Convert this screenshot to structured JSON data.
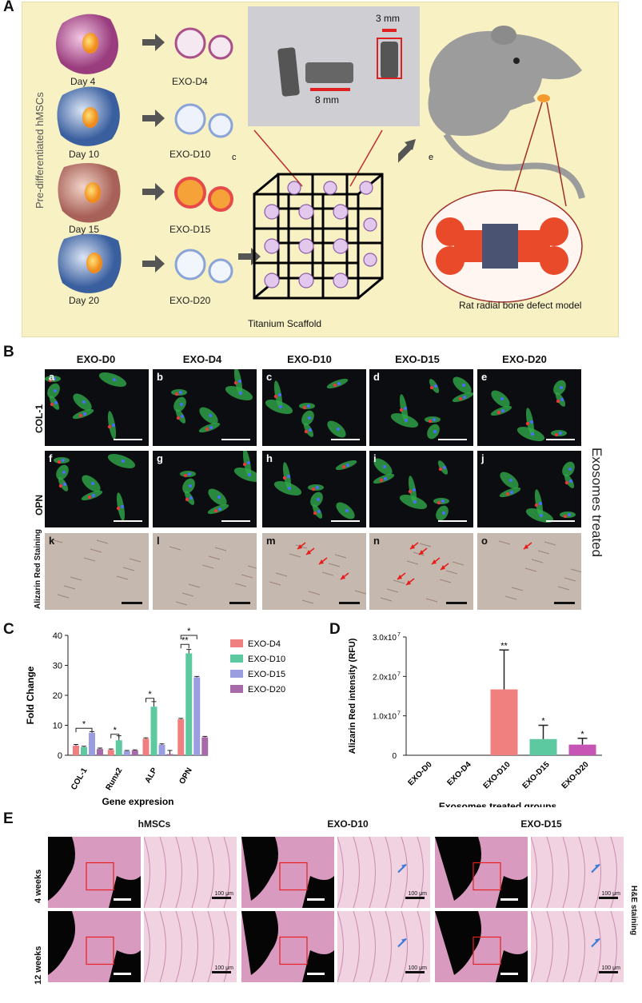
{
  "panel_labels": {
    "a": "A",
    "b": "B",
    "c": "C",
    "d": "D",
    "e": "E"
  },
  "panelA": {
    "side_label": "Pre-differentiated hMSCs",
    "days": [
      "Day 4",
      "Day 10",
      "Day 15",
      "Day 20"
    ],
    "exos": [
      "EXO-D4",
      "EXO-D10",
      "EXO-D15",
      "EXO-D20"
    ],
    "photo_dims": {
      "small": "3 mm",
      "large": "8 mm"
    },
    "scaffold_label": "Titanium Scaffold",
    "letter_c": "c",
    "letter_e": "e",
    "model_label": "Rat radial bone defect model",
    "colors": {
      "day4": "#a84a8c",
      "day10": "#3f68a8",
      "day15": "#b4706a",
      "day20": "#3a62a4",
      "bg": "#f7f1c4"
    }
  },
  "panelB": {
    "columns": [
      "EXO-D0",
      "EXO-D4",
      "EXO-D10",
      "EXO-D15",
      "EXO-D20"
    ],
    "rows": [
      "COL-1",
      "OPN",
      "Alizarin Red Staining"
    ],
    "tags": [
      [
        "a",
        "b",
        "c",
        "d",
        "e"
      ],
      [
        "f",
        "g",
        "h",
        "i",
        "j"
      ],
      [
        "k",
        "l",
        "m",
        "n",
        "o"
      ]
    ],
    "side_label": "Exosomes treated"
  },
  "chart_data": [
    {
      "type": "bar",
      "panel": "C",
      "categories": [
        "COL-1",
        "Runx2",
        "ALP",
        "OPN"
      ],
      "series": [
        {
          "name": "EXO-D4",
          "color": "#f07f7f",
          "values": [
            3.2,
            1.8,
            5.5,
            12
          ],
          "errors": [
            0.4,
            0.3,
            0.3,
            0.3
          ]
        },
        {
          "name": "EXO-D10",
          "color": "#5cc9a0",
          "values": [
            2.7,
            5.0,
            16.2,
            34
          ],
          "errors": [
            0.3,
            1.5,
            1.7,
            1.3
          ]
        },
        {
          "name": "EXO-D15",
          "color": "#9a9ee0",
          "values": [
            7.5,
            1.4,
            3.5,
            26
          ],
          "errors": [
            0.4,
            0.2,
            0.3,
            0.3
          ]
        },
        {
          "name": "EXO-D20",
          "color": "#a66aaa",
          "values": [
            2.1,
            1.6,
            0.4,
            6
          ],
          "errors": [
            0.3,
            0.2,
            1.2,
            0.3
          ]
        }
      ],
      "ylabel": "Fold Change",
      "xlabel": "Gene expresion",
      "ylim": [
        0,
        40
      ],
      "yticks": [
        "0",
        "10",
        "20",
        "30",
        "40"
      ],
      "legend": "right",
      "significance": [
        "*",
        "*",
        "*",
        "**",
        "*"
      ]
    },
    {
      "type": "bar",
      "panel": "D",
      "categories": [
        "EXO-D0",
        "EXO-D4",
        "EXO-D10",
        "EXO-D15",
        "EXO-D20"
      ],
      "values": [
        0,
        0,
        16700000,
        4100000,
        2700000
      ],
      "errors": [
        0,
        0,
        10000000,
        3500000,
        1600000
      ],
      "colors": [
        "#f07f7f",
        "#f07f7f",
        "#f07f7f",
        "#5cc9a0",
        "#c655b6"
      ],
      "ylabel": "Alizarin Red intensity (RFU)",
      "xlabel": "Exosomes treated groups",
      "ylim": [
        0,
        30000000
      ],
      "yticks": [
        "0",
        "1.0x10",
        "2.0x10",
        "3.0x10"
      ],
      "ytick_exp": "7",
      "significance": [
        "",
        "",
        "**",
        "*",
        "*"
      ]
    }
  ],
  "panelE": {
    "columns": [
      "hMSCs",
      "EXO-D10",
      "EXO-D15"
    ],
    "rows": [
      "4 weeks",
      "12 weeks"
    ],
    "scale": "100 μm",
    "side_label": "H&E staining"
  }
}
